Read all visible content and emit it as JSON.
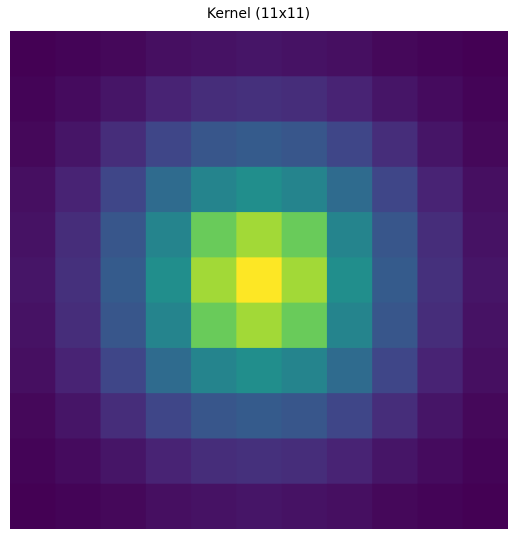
{
  "chart_data": {
    "type": "heatmap",
    "title": "Kernel (11x11)",
    "xlabel": "",
    "ylabel": "",
    "colormap": "viridis",
    "axes_visible": false,
    "grid": false,
    "size": [
      11,
      11
    ],
    "values": [
      [
        0.0,
        0.01,
        0.02,
        0.04,
        0.05,
        0.06,
        0.05,
        0.04,
        0.02,
        0.01,
        0.0
      ],
      [
        0.01,
        0.03,
        0.06,
        0.1,
        0.13,
        0.14,
        0.13,
        0.1,
        0.06,
        0.03,
        0.01
      ],
      [
        0.02,
        0.06,
        0.13,
        0.21,
        0.27,
        0.29,
        0.27,
        0.21,
        0.13,
        0.06,
        0.02
      ],
      [
        0.04,
        0.1,
        0.21,
        0.35,
        0.45,
        0.49,
        0.45,
        0.35,
        0.21,
        0.1,
        0.04
      ],
      [
        0.05,
        0.13,
        0.27,
        0.45,
        0.77,
        0.86,
        0.77,
        0.45,
        0.27,
        0.13,
        0.05
      ],
      [
        0.06,
        0.14,
        0.29,
        0.49,
        0.86,
        1.0,
        0.86,
        0.49,
        0.29,
        0.14,
        0.06
      ],
      [
        0.05,
        0.13,
        0.27,
        0.45,
        0.77,
        0.86,
        0.77,
        0.45,
        0.27,
        0.13,
        0.05
      ],
      [
        0.04,
        0.1,
        0.21,
        0.35,
        0.45,
        0.49,
        0.45,
        0.35,
        0.21,
        0.1,
        0.04
      ],
      [
        0.02,
        0.06,
        0.13,
        0.21,
        0.27,
        0.29,
        0.27,
        0.21,
        0.13,
        0.06,
        0.02
      ],
      [
        0.01,
        0.03,
        0.06,
        0.1,
        0.13,
        0.14,
        0.13,
        0.1,
        0.06,
        0.03,
        0.01
      ],
      [
        0.0,
        0.01,
        0.02,
        0.04,
        0.05,
        0.06,
        0.05,
        0.04,
        0.02,
        0.01,
        0.0
      ]
    ]
  }
}
